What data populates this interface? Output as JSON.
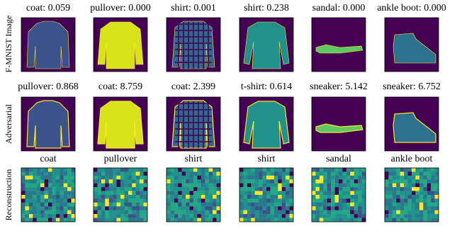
{
  "rows": [
    {
      "label": "F-MNIST Image",
      "titles": [
        "coat: 0.059",
        "pullover: 0.000",
        "shirt: 0.001",
        "shirt: 0.238",
        "sandal: 0.000",
        "ankle boot: 0.000"
      ]
    },
    {
      "label": "Adversarial",
      "titles": [
        "pullover: 0.868",
        "coat: 8.759",
        "coat: 2.399",
        "t-shirt: 0.614",
        "sneaker: 5.142",
        "sneaker: 6.752"
      ]
    },
    {
      "label": "Reconstruction",
      "titles": [
        "coat",
        "pullover",
        "shirt",
        "shirt",
        "sandal",
        "ankle boot"
      ]
    }
  ]
}
